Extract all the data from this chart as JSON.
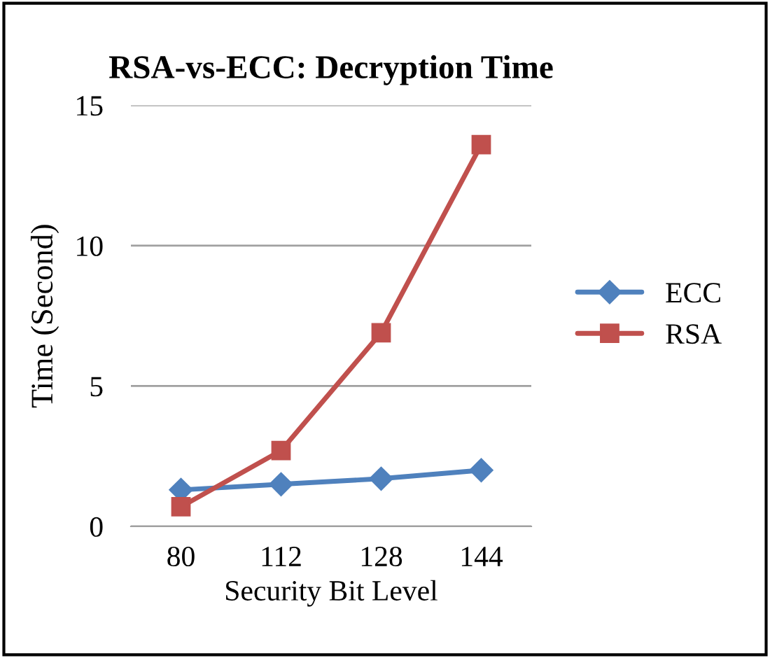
{
  "chart_data": {
    "type": "line",
    "title": "RSA-vs-ECC: Decryption Time",
    "xlabel": "Security Bit Level",
    "ylabel": "Time (Second)",
    "categories": [
      "80",
      "112",
      "128",
      "144"
    ],
    "series": [
      {
        "name": "ECC",
        "color": "#4f81bd",
        "values": [
          1.3,
          1.5,
          1.7,
          2.0
        ],
        "marker": "diamond"
      },
      {
        "name": "RSA",
        "color": "#c0504d",
        "values": [
          0.7,
          2.7,
          6.9,
          13.6
        ],
        "marker": "square"
      }
    ],
    "ylim": [
      0,
      15
    ],
    "yticks": [
      0,
      5,
      10,
      15
    ],
    "grid": "y",
    "legend": "right",
    "line_style": "solid"
  }
}
